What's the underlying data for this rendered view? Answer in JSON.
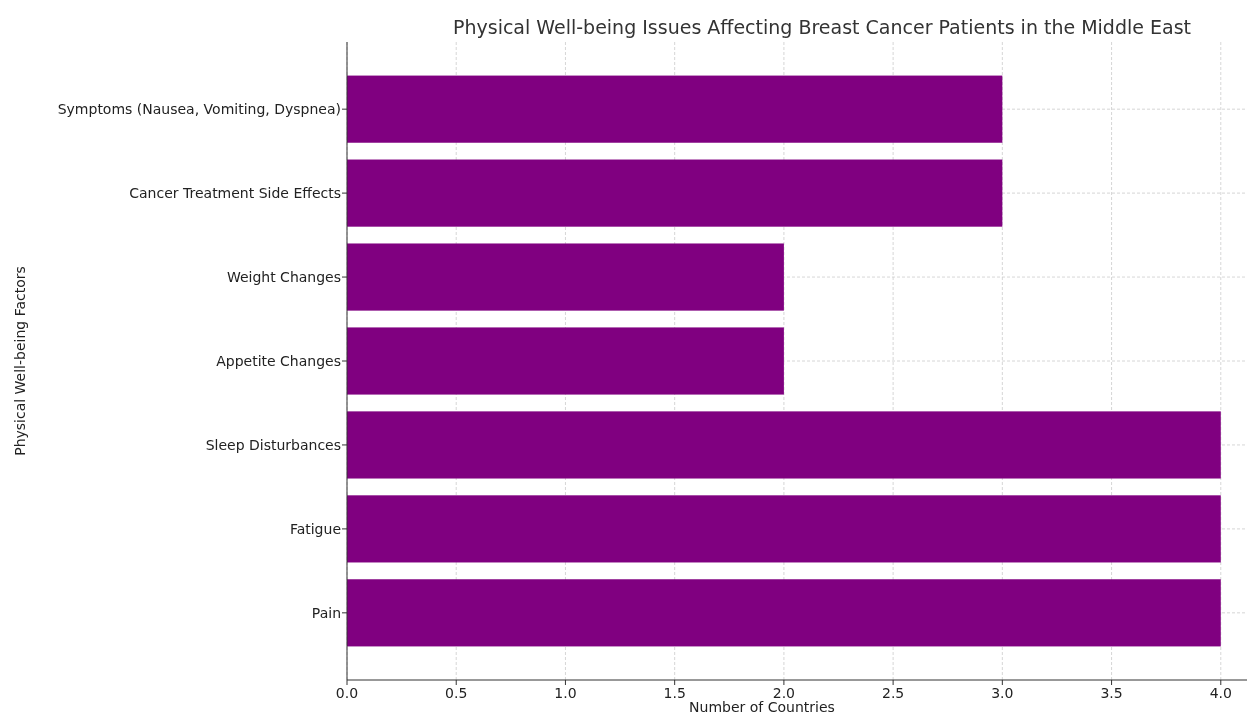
{
  "chart_data": {
    "type": "bar",
    "orientation": "horizontal",
    "title": "Physical Well-being Issues Affecting Breast Cancer Patients in the Middle East",
    "xlabel": "Number of Countries",
    "ylabel": "Physical Well-being Factors",
    "categories": [
      "Symptoms (Nausea, Vomiting, Dyspnea)",
      "Cancer Treatment Side Effects",
      "Weight Changes",
      "Appetite Changes",
      "Sleep Disturbances",
      "Fatigue",
      "Pain"
    ],
    "values": [
      3,
      3,
      2,
      2,
      4,
      4,
      4
    ],
    "color": "#800080",
    "xlim": [
      0,
      4.12
    ],
    "xticks": [
      {
        "value": 0,
        "label": "0.0"
      },
      {
        "value": 0.5,
        "label": "0.5"
      },
      {
        "value": 1,
        "label": "1.0"
      },
      {
        "value": 1.5,
        "label": "1.5"
      },
      {
        "value": 2,
        "label": "2.0"
      },
      {
        "value": 2.5,
        "label": "2.5"
      },
      {
        "value": 3,
        "label": "3.0"
      },
      {
        "value": 3.5,
        "label": "3.5"
      },
      {
        "value": 4,
        "label": "4.0"
      }
    ],
    "grid": true
  }
}
